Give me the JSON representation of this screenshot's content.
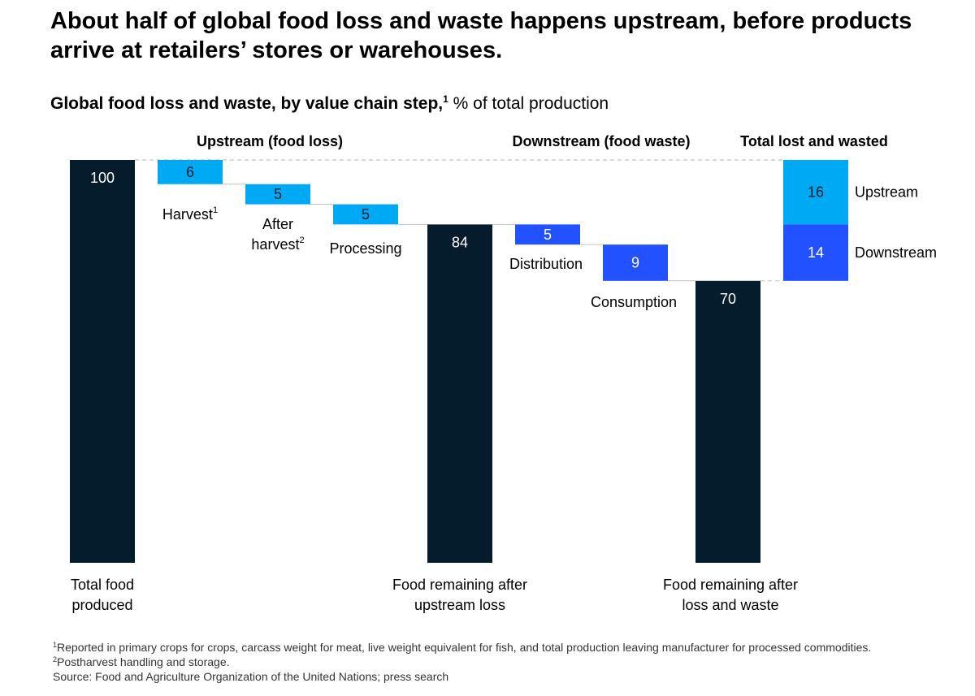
{
  "headline": "About half of global food loss and waste happens upstream, before products arrive at retailers’ stores or warehouses.",
  "subtitle": {
    "main": "Global food loss and waste, by value chain step,",
    "sup": "1",
    "unit": "% of total production"
  },
  "colors": {
    "total_bar": "#051c2c",
    "upstream": "#00a9f4",
    "downstream": "#2251ff",
    "connector": "#c0c0c0"
  },
  "chart_data": {
    "type": "bar",
    "subtype": "waterfall",
    "unit": "% of total production",
    "groups": [
      {
        "label": "Upstream (food loss)"
      },
      {
        "label": "Downstream (food waste)"
      },
      {
        "label": "Total lost and wasted"
      }
    ],
    "steps": [
      {
        "kind": "total",
        "value": 100,
        "label_lines": [
          "Total food",
          "produced"
        ]
      },
      {
        "kind": "upstream",
        "value": 6,
        "label_lines": [
          "Harvest"
        ],
        "sup": "1"
      },
      {
        "kind": "upstream",
        "value": 5,
        "label_lines": [
          "After",
          "harvest"
        ],
        "sup": "2"
      },
      {
        "kind": "upstream",
        "value": 5,
        "label_lines": [
          "Processing"
        ]
      },
      {
        "kind": "total",
        "value": 84,
        "label_lines": [
          "Food remaining after",
          "upstream loss"
        ]
      },
      {
        "kind": "downstream",
        "value": 5,
        "label_lines": [
          "Distribution"
        ]
      },
      {
        "kind": "downstream",
        "value": 9,
        "label_lines": [
          "Consumption"
        ]
      },
      {
        "kind": "total",
        "value": 70,
        "label_lines": [
          "Food remaining after",
          "loss and waste"
        ]
      }
    ],
    "stacked_total": [
      {
        "name": "Upstream",
        "value": 16
      },
      {
        "name": "Downstream",
        "value": 14
      }
    ],
    "ylim": [
      0,
      100
    ],
    "legend": "right-of-stacked-bar",
    "grid": false
  },
  "footnotes": [
    {
      "sup": "1",
      "text": "Reported in primary crops for crops, carcass weight for meat, live weight equivalent for fish, and total production leaving manufacturer for processed commodities."
    },
    {
      "sup": "2",
      "text": "Postharvest handling and storage."
    },
    {
      "sup": "",
      "text": "Source: Food and Agriculture Organization of the United Nations; press search"
    }
  ]
}
